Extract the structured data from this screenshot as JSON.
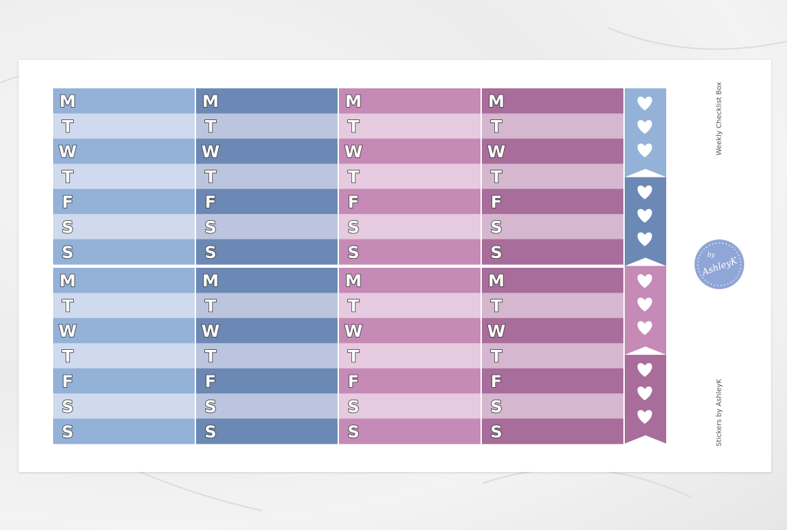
{
  "days": [
    "M",
    "T",
    "W",
    "T",
    "F",
    "S",
    "S"
  ],
  "side_labels": {
    "title": "Weekly Checklist Box",
    "credit": "Stickers by AshleyK"
  },
  "logo": {
    "by": "by",
    "name": "AshleyK"
  }
}
